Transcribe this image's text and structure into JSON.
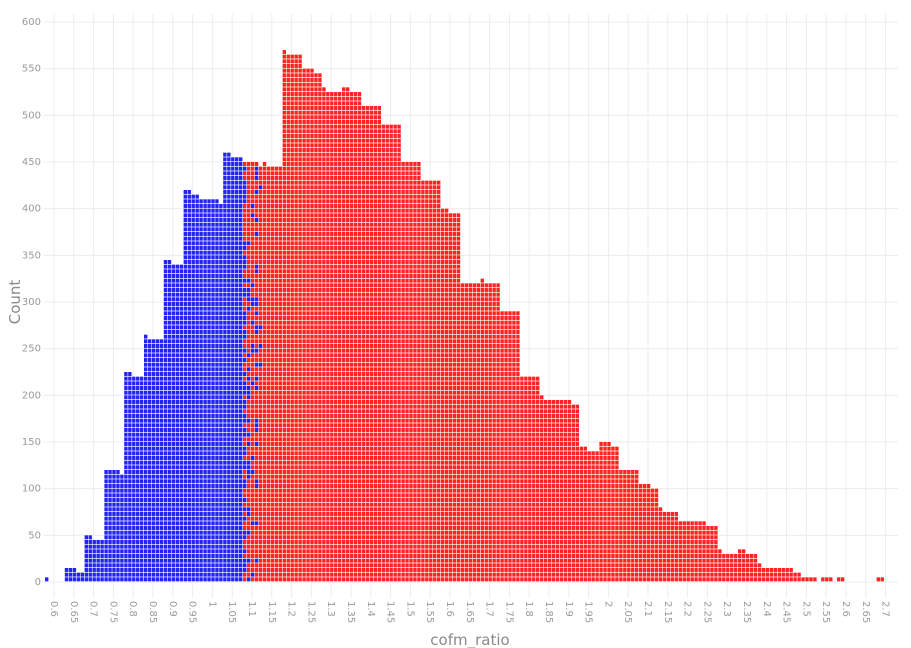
{
  "chart_data": {
    "type": "dot-histogram",
    "title": "",
    "xlabel": "cofm_ratio",
    "ylabel": "Count",
    "ylim": [
      0,
      600
    ],
    "yticks": [
      0,
      50,
      100,
      150,
      200,
      250,
      300,
      350,
      400,
      450,
      500,
      550,
      600
    ],
    "xticks": [
      "0.6",
      "0.65",
      "0.7",
      "0.75",
      "0.8",
      "0.85",
      "0.9",
      "0.95",
      "1",
      "1.05",
      "1.1",
      "1.15",
      "1.2",
      "1.25",
      "1.3",
      "1.35",
      "1.4",
      "1.45",
      "1.5",
      "1.55",
      "1.6",
      "1.65",
      "1.7",
      "1.75",
      "1.8",
      "1.85",
      "1.9",
      "1.95",
      "2",
      "2.05",
      "2.1",
      "2.15",
      "2.2",
      "2.25",
      "2.3",
      "2.35",
      "2.4",
      "2.45",
      "2.5",
      "2.55",
      "2.6",
      "2.65",
      "2.7"
    ],
    "x_start": 0.6,
    "bin_width": 0.01,
    "count_per_dot": 5,
    "grid": true,
    "colors": {
      "below": "#2222f5",
      "above": "#ff2222"
    },
    "mixed_range": [
      1.1,
      1.14
    ],
    "counts": [
      5,
      0,
      0,
      0,
      0,
      15,
      15,
      15,
      10,
      10,
      50,
      50,
      45,
      45,
      45,
      120,
      120,
      120,
      120,
      115,
      225,
      225,
      220,
      220,
      220,
      265,
      260,
      260,
      260,
      260,
      345,
      345,
      340,
      340,
      340,
      420,
      420,
      415,
      415,
      410,
      410,
      410,
      410,
      410,
      405,
      460,
      460,
      455,
      455,
      455,
      450,
      450,
      450,
      450,
      445,
      450,
      445,
      445,
      445,
      445,
      570,
      565,
      565,
      565,
      565,
      550,
      550,
      550,
      545,
      545,
      530,
      525,
      525,
      525,
      525,
      530,
      530,
      525,
      525,
      525,
      510,
      510,
      510,
      510,
      510,
      490,
      490,
      490,
      490,
      490,
      450,
      450,
      450,
      450,
      450,
      430,
      430,
      430,
      430,
      430,
      400,
      400,
      395,
      395,
      395,
      320,
      320,
      320,
      320,
      320,
      325,
      320,
      320,
      320,
      320,
      290,
      290,
      290,
      290,
      290,
      220,
      220,
      220,
      220,
      220,
      200,
      195,
      195,
      195,
      195,
      195,
      195,
      195,
      190,
      190,
      145,
      145,
      140,
      140,
      140,
      150,
      150,
      150,
      145,
      145,
      120,
      120,
      120,
      120,
      120,
      105,
      105,
      105,
      100,
      100,
      80,
      75,
      75,
      75,
      75,
      65,
      65,
      65,
      65,
      65,
      65,
      65,
      60,
      60,
      60,
      35,
      30,
      30,
      30,
      30,
      35,
      35,
      30,
      30,
      30,
      20,
      15,
      15,
      15,
      15,
      15,
      15,
      15,
      15,
      10,
      10,
      5,
      5,
      5,
      5,
      0,
      5,
      5,
      5,
      0,
      5,
      5,
      0,
      0,
      0,
      0,
      0,
      0,
      0,
      0,
      5,
      5
    ]
  }
}
